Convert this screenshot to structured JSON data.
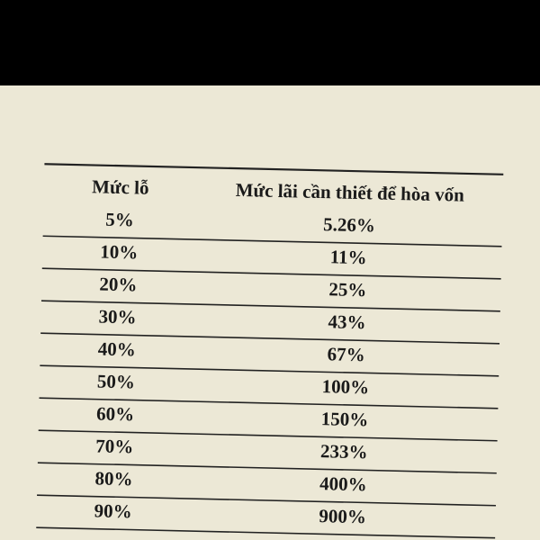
{
  "table": {
    "header": [
      "Mức lỗ",
      "Mức lãi cần thiết để hòa vốn"
    ],
    "rows": [
      [
        "5%",
        "5.26%"
      ],
      [
        "10%",
        "11%"
      ],
      [
        "20%",
        "25%"
      ],
      [
        "30%",
        "43%"
      ],
      [
        "40%",
        "67%"
      ],
      [
        "50%",
        "100%"
      ],
      [
        "60%",
        "150%"
      ],
      [
        "70%",
        "233%"
      ],
      [
        "80%",
        "400%"
      ],
      [
        "90%",
        "900%"
      ]
    ]
  }
}
